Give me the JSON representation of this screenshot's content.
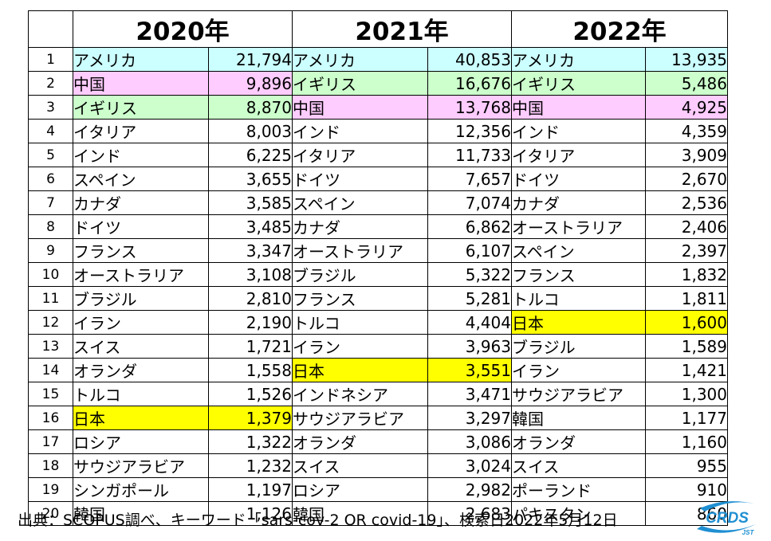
{
  "colors": {
    "usa": "#ccffff",
    "china": "#ffccff",
    "uk": "#ccffcc",
    "japan": "#ffff00",
    "logo_blue": "#1f8fd2"
  },
  "years": [
    "2020年",
    "2021年",
    "2022年"
  ],
  "ranks": [
    "1",
    "2",
    "3",
    "4",
    "5",
    "6",
    "7",
    "8",
    "9",
    "10",
    "11",
    "12",
    "13",
    "14",
    "15",
    "16",
    "17",
    "18",
    "19",
    "20"
  ],
  "table": {
    "y2020": [
      {
        "country": "アメリカ",
        "count": "21,794",
        "hl": "usa"
      },
      {
        "country": "中国",
        "count": "9,896",
        "hl": "china"
      },
      {
        "country": "イギリス",
        "count": "8,870",
        "hl": "uk"
      },
      {
        "country": "イタリア",
        "count": "8,003"
      },
      {
        "country": "インド",
        "count": "6,225"
      },
      {
        "country": "スペイン",
        "count": "3,655"
      },
      {
        "country": "カナダ",
        "count": "3,585"
      },
      {
        "country": "ドイツ",
        "count": "3,485"
      },
      {
        "country": "フランス",
        "count": "3,347"
      },
      {
        "country": "オーストラリア",
        "count": "3,108"
      },
      {
        "country": "ブラジル",
        "count": "2,810"
      },
      {
        "country": "イラン",
        "count": "2,190"
      },
      {
        "country": "スイス",
        "count": "1,721"
      },
      {
        "country": "オランダ",
        "count": "1,558"
      },
      {
        "country": "トルコ",
        "count": "1,526"
      },
      {
        "country": "日本",
        "count": "1,379",
        "hl": "japan"
      },
      {
        "country": "ロシア",
        "count": "1,322"
      },
      {
        "country": "サウジアラビア",
        "count": "1,232"
      },
      {
        "country": "シンガポール",
        "count": "1,197"
      },
      {
        "country": "韓国",
        "count": "1,126"
      }
    ],
    "y2021": [
      {
        "country": "アメリカ",
        "count": "40,853",
        "hl": "usa"
      },
      {
        "country": "イギリス",
        "count": "16,676",
        "hl": "uk"
      },
      {
        "country": "中国",
        "count": "13,768",
        "hl": "china"
      },
      {
        "country": "インド",
        "count": "12,356"
      },
      {
        "country": "イタリア",
        "count": "11,733"
      },
      {
        "country": "ドイツ",
        "count": "7,657"
      },
      {
        "country": "スペイン",
        "count": "7,074"
      },
      {
        "country": "カナダ",
        "count": "6,862"
      },
      {
        "country": "オーストラリア",
        "count": "6,107"
      },
      {
        "country": "ブラジル",
        "count": "5,322"
      },
      {
        "country": "フランス",
        "count": "5,281"
      },
      {
        "country": "トルコ",
        "count": "4,404"
      },
      {
        "country": "イラン",
        "count": "3,963"
      },
      {
        "country": "日本",
        "count": "3,551",
        "hl": "japan"
      },
      {
        "country": "インドネシア",
        "count": "3,471"
      },
      {
        "country": "サウジアラビア",
        "count": "3,297"
      },
      {
        "country": "オランダ",
        "count": "3,086"
      },
      {
        "country": "スイス",
        "count": "3,024"
      },
      {
        "country": "ロシア",
        "count": "2,982"
      },
      {
        "country": "韓国",
        "count": "2,683"
      }
    ],
    "y2022": [
      {
        "country": "アメリカ",
        "count": "13,935",
        "hl": "usa"
      },
      {
        "country": "イギリス",
        "count": "5,486",
        "hl": "uk"
      },
      {
        "country": "中国",
        "count": "4,925",
        "hl": "china"
      },
      {
        "country": "インド",
        "count": "4,359"
      },
      {
        "country": "イタリア",
        "count": "3,909"
      },
      {
        "country": "ドイツ",
        "count": "2,670"
      },
      {
        "country": "カナダ",
        "count": "2,536"
      },
      {
        "country": "オーストラリア",
        "count": "2,406"
      },
      {
        "country": "スペイン",
        "count": "2,397"
      },
      {
        "country": "フランス",
        "count": "1,832"
      },
      {
        "country": "トルコ",
        "count": "1,811"
      },
      {
        "country": "日本",
        "count": "1,600",
        "hl": "japan"
      },
      {
        "country": "ブラジル",
        "count": "1,589"
      },
      {
        "country": "イラン",
        "count": "1,421"
      },
      {
        "country": "サウジアラビア",
        "count": "1,300"
      },
      {
        "country": "韓国",
        "count": "1,177"
      },
      {
        "country": "オランダ",
        "count": "1,160"
      },
      {
        "country": "スイス",
        "count": "955"
      },
      {
        "country": "ポーランド",
        "count": "910"
      },
      {
        "country": "パキスタン",
        "count": "860"
      }
    ]
  },
  "footer": "出典：SCOPUS調べ、キーワード「sars-cov-2  OR  covid-19」、検索日2022年5月12日",
  "logo": {
    "text": "CRDS",
    "subtext": "JST"
  }
}
